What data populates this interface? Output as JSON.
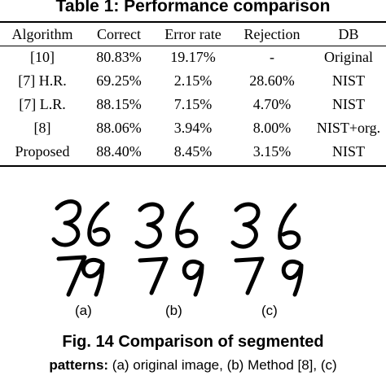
{
  "table": {
    "title": "Table 1: Performance comparison",
    "headers": [
      "Algorithm",
      "Correct",
      "Error rate",
      "Rejection",
      "DB"
    ],
    "rows": [
      [
        "[10]",
        "80.83%",
        "19.17%",
        "-",
        "Original"
      ],
      [
        "[7] H.R.",
        "69.25%",
        "2.15%",
        "28.60%",
        "NIST"
      ],
      [
        "[7] L.R.",
        "88.15%",
        "7.15%",
        "4.70%",
        "NIST"
      ],
      [
        "[8]",
        "88.06%",
        "3.94%",
        "8.00%",
        "NIST+org."
      ],
      [
        "Proposed",
        "88.40%",
        "8.45%",
        "3.15%",
        "NIST"
      ]
    ]
  },
  "figure": {
    "row1_digits": [
      "36",
      "3",
      "6",
      "3",
      "6"
    ],
    "row2_digits": [
      "79",
      "7",
      "9",
      "7",
      "9"
    ],
    "sublabels": [
      "(a)",
      "(b)",
      "(c)"
    ],
    "title": "Fig. 14 Comparison of segmented",
    "caption_bold": "patterns:",
    "caption_rest": " (a) original image, (b) Method [8], (c)"
  }
}
